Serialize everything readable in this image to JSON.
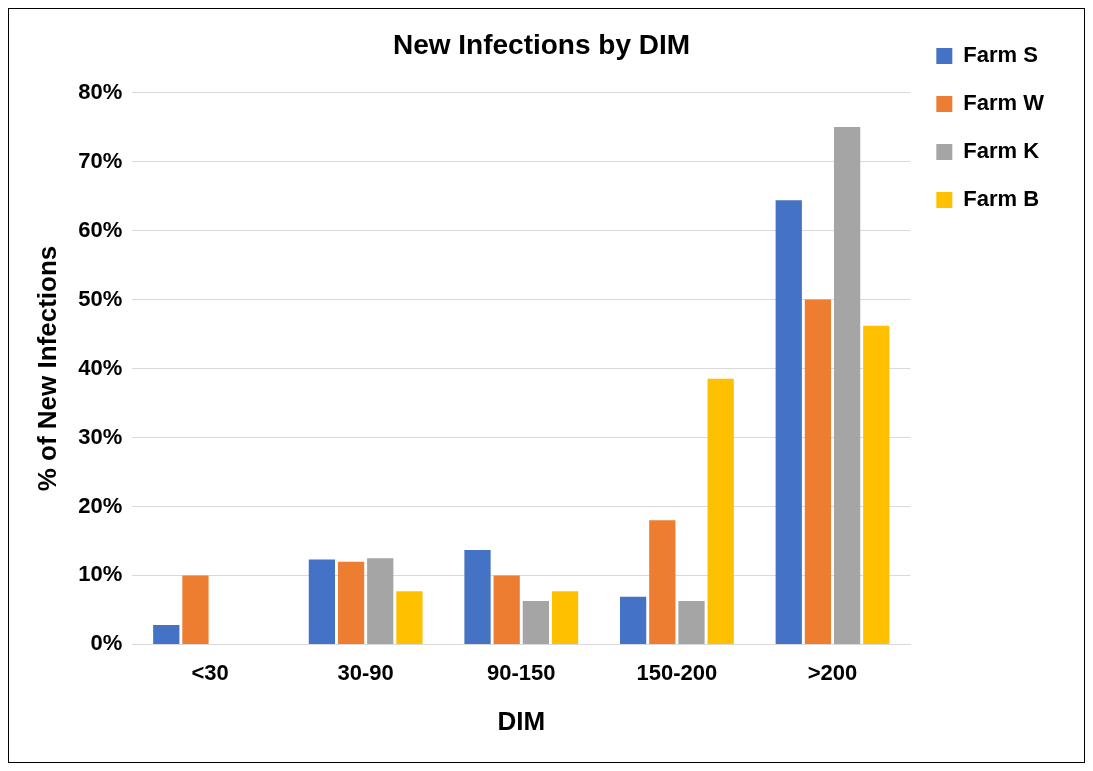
{
  "chart_data": {
    "type": "bar",
    "title": "New Infections by DIM",
    "xlabel": "DIM",
    "ylabel": "% of New Infections",
    "categories": [
      "<30",
      "30-90",
      "90-150",
      "150-200",
      ">200"
    ],
    "series": [
      {
        "name": "Farm S",
        "color": "#4472c4",
        "values": [
          2.8,
          12.3,
          13.7,
          6.9,
          64.4
        ]
      },
      {
        "name": "Farm W",
        "color": "#ed7d31",
        "values": [
          10,
          12,
          10,
          18,
          50
        ]
      },
      {
        "name": "Farm K",
        "color": "#a5a5a5",
        "values": [
          0,
          12.5,
          6.3,
          6.3,
          75
        ]
      },
      {
        "name": "Farm B",
        "color": "#ffc000",
        "values": [
          0,
          7.7,
          7.7,
          38.5,
          46.2
        ]
      }
    ],
    "ylim": [
      0,
      80
    ],
    "yticks": [
      {
        "value": 0,
        "label": "0%"
      },
      {
        "value": 10,
        "label": "10%"
      },
      {
        "value": 20,
        "label": "20%"
      },
      {
        "value": 30,
        "label": "30%"
      },
      {
        "value": 40,
        "label": "40%"
      },
      {
        "value": 50,
        "label": "50%"
      },
      {
        "value": 60,
        "label": "60%"
      },
      {
        "value": 70,
        "label": "70%"
      },
      {
        "value": 80,
        "label": "80%"
      }
    ],
    "grid": "y",
    "legend": "right"
  }
}
